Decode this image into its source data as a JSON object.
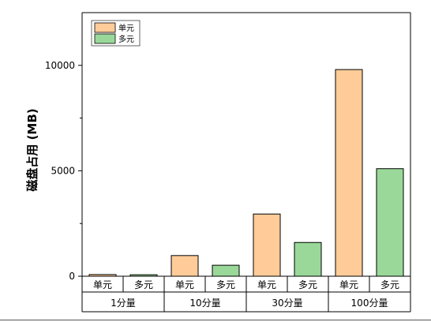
{
  "chart_data": {
    "type": "bar",
    "ylabel": "磁盘占用 (MB)",
    "ylim": [
      0,
      12500
    ],
    "yticks": [
      0,
      5000,
      10000
    ],
    "groups": [
      "1分量",
      "10分量",
      "30分量",
      "100分量"
    ],
    "series": [
      {
        "name": "单元",
        "color": "#FFCC99",
        "values": [
          80,
          980,
          2950,
          9800
        ]
      },
      {
        "name": "多元",
        "color": "#99D899",
        "values": [
          70,
          520,
          1600,
          5100
        ]
      }
    ],
    "legend_position": "top-left"
  }
}
